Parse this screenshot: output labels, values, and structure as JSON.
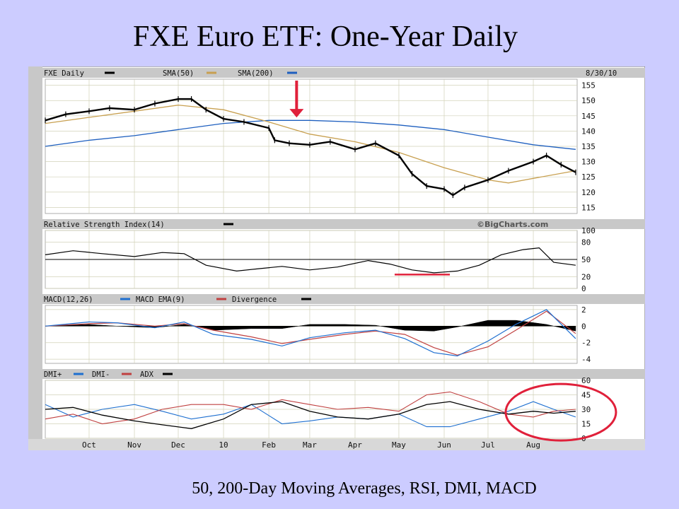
{
  "slide": {
    "title": "FXE Euro ETF: One-Year Daily",
    "caption": "50, 200-Day Moving Averages, RSI, DMI, MACD"
  },
  "colors": {
    "background": "#ccccff",
    "sma50": "#c8a050",
    "sma200": "#1e5fbf",
    "dmi_plus": "#1e6fd0",
    "dmi_minus": "#c04040",
    "adx": "#000000",
    "macd": "#1e6fd0",
    "macd_ema": "#c04040",
    "annotation": "#e0203a"
  },
  "chart_data": [
    {
      "type": "line",
      "panel": "price",
      "header": {
        "symbol": "FXE Daily",
        "sma50_label": "SMA(50)",
        "sma200_label": "SMA(200)",
        "date": "8/30/10"
      },
      "x_ticks": [
        "Oct",
        "Nov",
        "Dec",
        "10",
        "Feb",
        "Mar",
        "Apr",
        "May",
        "Jun",
        "Jul",
        "Aug"
      ],
      "y_ticks": [
        155,
        150,
        145,
        140,
        135,
        130,
        125,
        120,
        115
      ],
      "ylim": [
        113,
        157
      ],
      "price": {
        "x": [
          "2009-09-01",
          "2009-09-15",
          "2009-10-01",
          "2009-10-15",
          "2009-11-01",
          "2009-11-15",
          "2009-12-01",
          "2009-12-10",
          "2009-12-20",
          "2010-01-01",
          "2010-01-15",
          "2010-02-01",
          "2010-02-05",
          "2010-02-15",
          "2010-03-01",
          "2010-03-15",
          "2010-04-01",
          "2010-04-15",
          "2010-05-01",
          "2010-05-10",
          "2010-05-20",
          "2010-06-01",
          "2010-06-07",
          "2010-06-15",
          "2010-07-01",
          "2010-07-15",
          "2010-08-01",
          "2010-08-10",
          "2010-08-20",
          "2010-08-30"
        ],
        "y": [
          143.5,
          145.5,
          146.5,
          147.5,
          147,
          149,
          150.5,
          150.5,
          147,
          144,
          143,
          141,
          137,
          136,
          135.5,
          136.5,
          134,
          136,
          132,
          126,
          122,
          121,
          119,
          121.5,
          124,
          127,
          130,
          132,
          129,
          126.5
        ]
      },
      "sma50": {
        "x": [
          "2009-09-01",
          "2009-10-01",
          "2009-11-01",
          "2009-12-01",
          "2010-01-01",
          "2010-02-01",
          "2010-03-01",
          "2010-04-01",
          "2010-05-01",
          "2010-06-01",
          "2010-07-01",
          "2010-07-15",
          "2010-08-01",
          "2010-08-30"
        ],
        "y": [
          142.5,
          144.5,
          146.5,
          148.5,
          147,
          143,
          139,
          136.5,
          133,
          128,
          124,
          123,
          124.5,
          127
        ]
      },
      "sma200": {
        "x": [
          "2009-09-01",
          "2009-10-01",
          "2009-11-01",
          "2009-12-01",
          "2010-01-01",
          "2010-02-01",
          "2010-03-01",
          "2010-04-01",
          "2010-05-01",
          "2010-06-01",
          "2010-07-01",
          "2010-08-01",
          "2010-08-30"
        ],
        "y": [
          135,
          137,
          138.5,
          140.5,
          142.5,
          143.5,
          143.5,
          143,
          142,
          140.5,
          138,
          135.5,
          134
        ]
      },
      "annotation": {
        "type": "arrow",
        "x": "2010-02-20",
        "y": 144
      }
    },
    {
      "type": "line",
      "panel": "rsi",
      "title": "Relative Strength Index(14)",
      "watermark": "©BigCharts.com",
      "y_ticks": [
        100,
        80,
        50,
        20,
        0
      ],
      "ylim": [
        0,
        100
      ],
      "reference_line": 50,
      "x": [
        "2009-09-01",
        "2009-09-20",
        "2009-10-10",
        "2009-11-01",
        "2009-11-20",
        "2009-12-05",
        "2009-12-20",
        "2010-01-10",
        "2010-01-25",
        "2010-02-10",
        "2010-03-01",
        "2010-03-20",
        "2010-04-10",
        "2010-04-25",
        "2010-05-10",
        "2010-05-25",
        "2010-06-10",
        "2010-06-25",
        "2010-07-10",
        "2010-07-25",
        "2010-08-05",
        "2010-08-15",
        "2010-08-30"
      ],
      "y": [
        58,
        65,
        60,
        55,
        62,
        60,
        40,
        30,
        34,
        38,
        32,
        37,
        48,
        42,
        32,
        27,
        30,
        40,
        58,
        67,
        70,
        45,
        40
      ],
      "annotation": {
        "type": "underline",
        "x_start": "2010-05-01",
        "x_end": "2010-06-01",
        "y": 24
      }
    },
    {
      "type": "line",
      "panel": "macd",
      "legend": [
        "MACD(12,26)",
        "MACD EMA(9)",
        "Divergence"
      ],
      "y_ticks": [
        2,
        0,
        -2,
        -4
      ],
      "ylim": [
        -4.5,
        2.5
      ],
      "x": [
        "2009-09-01",
        "2009-10-01",
        "2009-10-20",
        "2009-11-15",
        "2009-12-05",
        "2009-12-25",
        "2010-01-20",
        "2010-02-10",
        "2010-03-01",
        "2010-03-25",
        "2010-04-15",
        "2010-05-05",
        "2010-05-25",
        "2010-06-10",
        "2010-07-01",
        "2010-07-20",
        "2010-08-10",
        "2010-08-30"
      ],
      "series": [
        {
          "name": "MACD(12,26)",
          "values": [
            0,
            0.5,
            0.4,
            -0.2,
            0.5,
            -1,
            -1.6,
            -2.4,
            -1.4,
            -0.8,
            -0.5,
            -1.5,
            -3.2,
            -3.6,
            -1.8,
            0.2,
            2,
            -1.5
          ]
        },
        {
          "name": "MACD EMA(9)",
          "values": [
            0,
            0.3,
            0.4,
            0,
            0.3,
            -0.5,
            -1.3,
            -2.1,
            -1.6,
            -1,
            -0.6,
            -1,
            -2.6,
            -3.5,
            -2.5,
            -0.5,
            1.8,
            -0.9
          ]
        },
        {
          "name": "Divergence",
          "values": [
            0,
            0.2,
            0,
            -0.2,
            0.2,
            -0.5,
            -0.3,
            -0.3,
            0.2,
            0.2,
            0.1,
            -0.5,
            -0.6,
            -0.1,
            0.7,
            0.7,
            0.2,
            -0.6
          ]
        }
      ]
    },
    {
      "type": "line",
      "panel": "dmi",
      "legend": [
        "DMI+",
        "DMI-",
        "ADX"
      ],
      "y_ticks": [
        60,
        45,
        30,
        15,
        0
      ],
      "ylim": [
        0,
        60
      ],
      "x": [
        "2009-09-01",
        "2009-09-20",
        "2009-10-10",
        "2009-11-01",
        "2009-11-20",
        "2009-12-10",
        "2010-01-01",
        "2010-01-20",
        "2010-02-10",
        "2010-03-01",
        "2010-03-20",
        "2010-04-10",
        "2010-05-01",
        "2010-05-20",
        "2010-06-05",
        "2010-06-25",
        "2010-07-15",
        "2010-08-01",
        "2010-08-15",
        "2010-08-30"
      ],
      "series": [
        {
          "name": "DMI+",
          "values": [
            35,
            22,
            30,
            35,
            28,
            20,
            25,
            35,
            15,
            18,
            22,
            20,
            25,
            12,
            12,
            20,
            28,
            38,
            30,
            22
          ]
        },
        {
          "name": "DMI-",
          "values": [
            20,
            25,
            15,
            20,
            30,
            35,
            35,
            30,
            40,
            35,
            30,
            32,
            28,
            45,
            48,
            38,
            25,
            22,
            28,
            30
          ]
        },
        {
          "name": "ADX",
          "values": [
            30,
            32,
            24,
            18,
            14,
            10,
            20,
            35,
            38,
            28,
            22,
            20,
            25,
            35,
            38,
            30,
            25,
            28,
            26,
            28
          ]
        }
      ],
      "annotation": {
        "type": "ellipse",
        "x": "2010-08-15",
        "y": 27
      }
    }
  ]
}
